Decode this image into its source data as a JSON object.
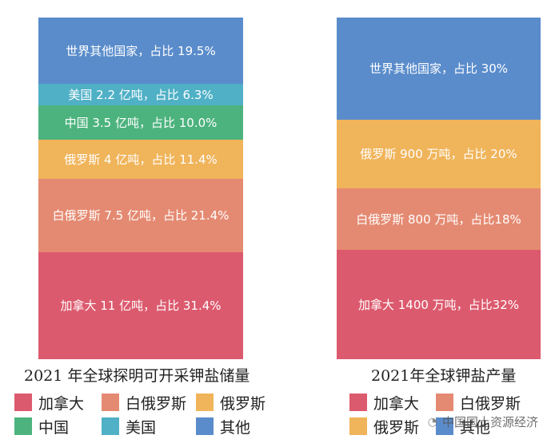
{
  "colors": {
    "canada": "#dc5a6e",
    "belarus": "#e58a72",
    "russia": "#f0b45a",
    "china": "#4db37e",
    "usa": "#4fb0c6",
    "others": "#5a8ccb"
  },
  "chart_data": [
    {
      "type": "bar",
      "stacked": true,
      "title": "2021 年全球探明可开采钾盐储量",
      "series": [
        {
          "key": "canada",
          "name": "加拿大",
          "value": 31.4,
          "label": "加拿大 11 亿吨，占比 31.4%"
        },
        {
          "key": "belarus",
          "name": "白俄罗斯",
          "value": 21.4,
          "label": "白俄罗斯 7.5 亿吨，占比 21.4%"
        },
        {
          "key": "russia",
          "name": "俄罗斯",
          "value": 11.4,
          "label": "俄罗斯 4 亿吨，占比 11.4%"
        },
        {
          "key": "china",
          "name": "中国",
          "value": 10.0,
          "label": "中国 3.5 亿吨，占比 10.0%"
        },
        {
          "key": "usa",
          "name": "美国",
          "value": 6.3,
          "label": "美国 2.2 亿吨，占比 6.3%"
        },
        {
          "key": "others",
          "name": "其他",
          "value": 19.5,
          "label": "世界其他国家，占比 19.5%"
        }
      ],
      "legend": [
        "加拿大",
        "白俄罗斯",
        "俄罗斯",
        "中国",
        "美国",
        "其他"
      ]
    },
    {
      "type": "bar",
      "stacked": true,
      "title": "2021年全球钾盐产量",
      "series": [
        {
          "key": "canada",
          "name": "加拿大",
          "value": 32,
          "label": "加拿大 1400 万吨，占比32%"
        },
        {
          "key": "belarus",
          "name": "白俄罗斯",
          "value": 18,
          "label": "白俄罗斯 800 万吨，占比18%"
        },
        {
          "key": "russia",
          "name": "俄罗斯",
          "value": 20,
          "label": "俄罗斯 900 万吨，占比 20%"
        },
        {
          "key": "others",
          "name": "其他",
          "value": 30,
          "label": "世界其他国家，占比 30%"
        }
      ],
      "legend": [
        "加拿大",
        "白俄罗斯",
        "俄罗斯",
        "其他"
      ]
    }
  ],
  "watermark": "中国国土资源经济"
}
